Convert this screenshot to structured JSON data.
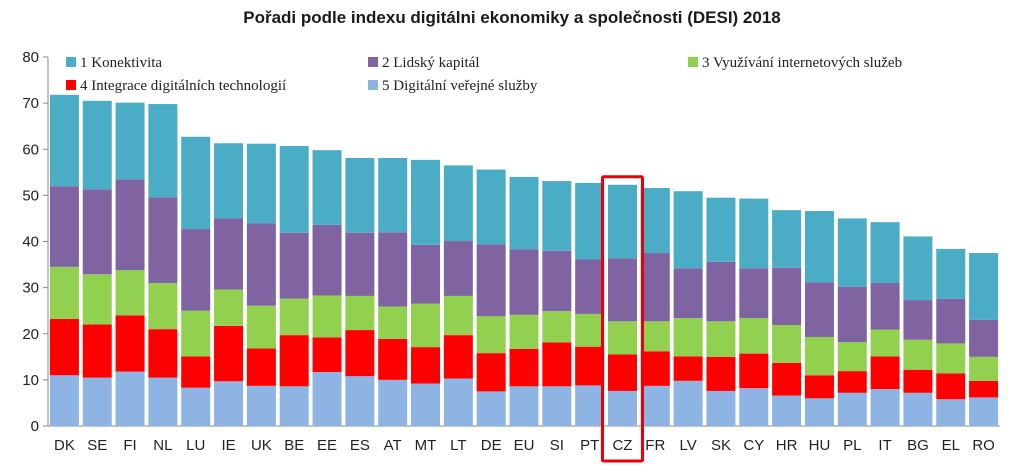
{
  "chart_data": {
    "type": "bar",
    "stacked": true,
    "title": "Pořadi podle indexu digitálni ekonomiky a společnosti (DESI) 2018",
    "categories": [
      "DK",
      "SE",
      "FI",
      "NL",
      "LU",
      "IE",
      "UK",
      "BE",
      "EE",
      "ES",
      "AT",
      "MT",
      "LT",
      "DE",
      "EU",
      "SI",
      "PT",
      "CZ",
      "FR",
      "LV",
      "SK",
      "CY",
      "HR",
      "HU",
      "PL",
      "IT",
      "BG",
      "EL",
      "RO"
    ],
    "highlighted_category": "CZ",
    "ylim": [
      0,
      80
    ],
    "yticks": [
      0,
      10,
      20,
      30,
      40,
      50,
      60,
      70,
      80
    ],
    "grid": false,
    "legend_position": "top-left",
    "series": [
      {
        "name": "5 Digitální veřejné služby",
        "color": "#8db4e2",
        "values": [
          11,
          10.5,
          11.8,
          10.5,
          8.3,
          9.7,
          8.7,
          8.6,
          11.7,
          10.8,
          10,
          9.2,
          10.3,
          7.5,
          8.6,
          8.6,
          8.8,
          7.6,
          8.7,
          9.8,
          7.6,
          8.2,
          6.6,
          6,
          7.2,
          8,
          7.2,
          5.8,
          6.2
        ]
      },
      {
        "name": "4 Integrace digitálních technologií",
        "color": "#ff0000",
        "values": [
          12.2,
          11.5,
          12.2,
          10.5,
          6.8,
          12,
          8.1,
          11.1,
          7.5,
          10,
          8.9,
          7.9,
          9.4,
          8.3,
          8.1,
          9.5,
          8.4,
          7.9,
          7.5,
          5.3,
          7.4,
          7.5,
          7.1,
          5,
          4.7,
          7.1,
          5,
          5.6,
          3.6
        ]
      },
      {
        "name": "3 Využívání internetových služeb",
        "color": "#92d050",
        "values": [
          11.3,
          10.9,
          9.8,
          10,
          9.9,
          7.9,
          9.3,
          7.9,
          9.1,
          7.4,
          7,
          9.4,
          8.5,
          8,
          7.4,
          6.8,
          7.1,
          7.2,
          6.5,
          8.3,
          7.7,
          7.7,
          8.2,
          8.3,
          6.3,
          5.8,
          6.5,
          6.5,
          5.2
        ]
      },
      {
        "name": "2 Lidský kapitál",
        "color": "#8064a2",
        "values": [
          17.5,
          18.4,
          19.7,
          18.6,
          17.7,
          15.4,
          17.8,
          14.3,
          15.3,
          13.7,
          16.1,
          12.8,
          11.9,
          15.6,
          14.2,
          13.1,
          11.8,
          13.6,
          14.8,
          10.8,
          12.9,
          10.8,
          12.4,
          11.8,
          12,
          10.1,
          8.6,
          9.7,
          8
        ]
      },
      {
        "name": "1 Konektivita",
        "color": "#4bacc6",
        "values": [
          19.8,
          19.2,
          16.6,
          20.2,
          20,
          16.3,
          17.3,
          18.8,
          16.2,
          16.2,
          16.1,
          18.4,
          16.4,
          16.2,
          15.7,
          15.1,
          16.6,
          16,
          14.1,
          16.7,
          13.9,
          15.1,
          12.5,
          15.5,
          14.8,
          13.2,
          13.8,
          10.8,
          14.5
        ]
      }
    ]
  }
}
